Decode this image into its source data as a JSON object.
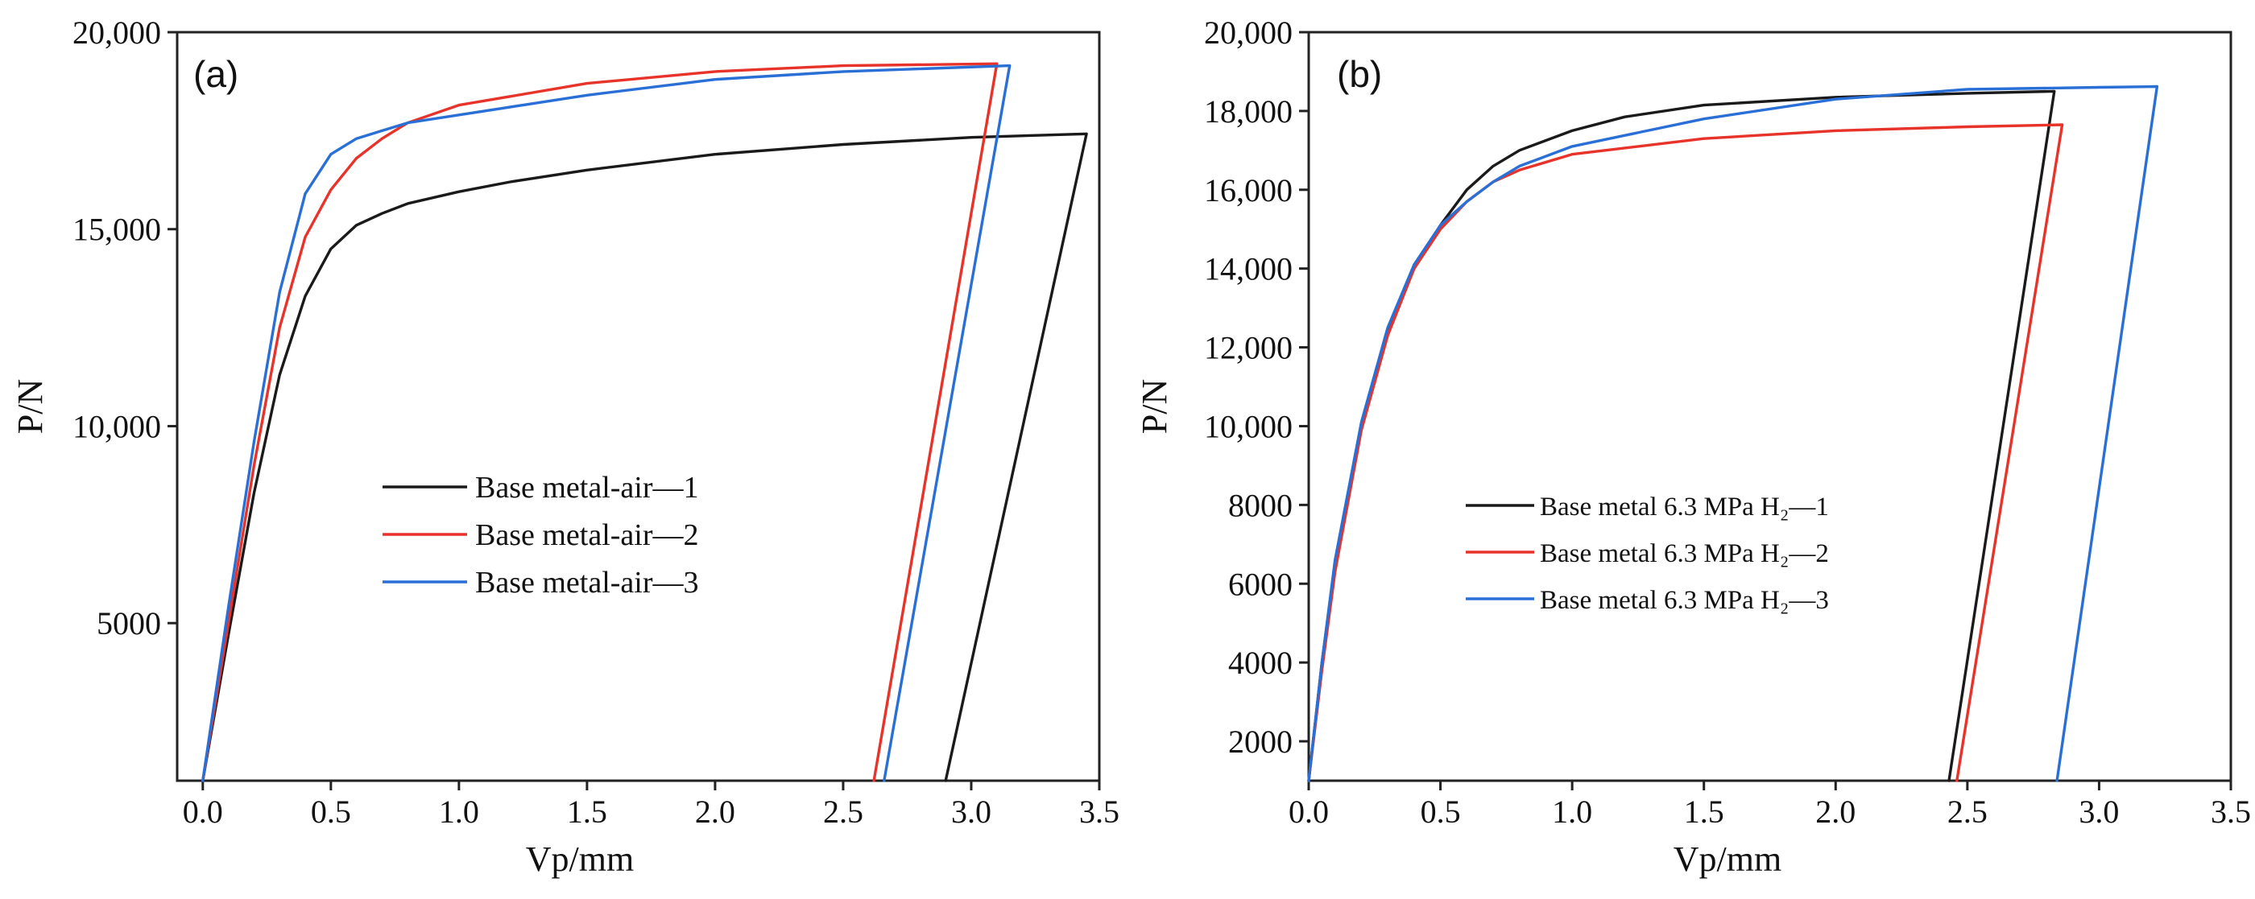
{
  "chart_data": [
    {
      "type": "line",
      "panel_label": "(a)",
      "xlabel": "Vp/mm",
      "ylabel": "P/N",
      "xlim": [
        -0.1,
        3.5
      ],
      "ylim": [
        1000,
        20000
      ],
      "x_ticks": [
        0.0,
        0.5,
        1.0,
        1.5,
        2.0,
        2.5,
        3.0,
        3.5
      ],
      "x_tick_labels": [
        "0.0",
        "0.5",
        "1.0",
        "1.5",
        "2.0",
        "2.5",
        "3.0",
        "3.5"
      ],
      "y_ticks": [
        5000,
        10000,
        15000,
        20000
      ],
      "y_tick_labels": [
        "5000",
        "10,000",
        "15,000",
        "20,000"
      ],
      "legend_position": "center",
      "series": [
        {
          "name": "Base metal-air—1",
          "color": "#1a1a1a",
          "points": [
            [
              0.0,
              1000
            ],
            [
              0.1,
              4700
            ],
            [
              0.2,
              8300
            ],
            [
              0.3,
              11300
            ],
            [
              0.4,
              13300
            ],
            [
              0.5,
              14500
            ],
            [
              0.6,
              15100
            ],
            [
              0.7,
              15400
            ],
            [
              0.8,
              15650
            ],
            [
              1.0,
              15950
            ],
            [
              1.2,
              16200
            ],
            [
              1.5,
              16500
            ],
            [
              2.0,
              16900
            ],
            [
              2.5,
              17150
            ],
            [
              3.0,
              17330
            ],
            [
              3.45,
              17420
            ],
            [
              2.9,
              1000
            ]
          ]
        },
        {
          "name": "Base metal-air—2",
          "color": "#e8332a",
          "points": [
            [
              0.0,
              1000
            ],
            [
              0.1,
              5000
            ],
            [
              0.2,
              9000
            ],
            [
              0.3,
              12500
            ],
            [
              0.4,
              14800
            ],
            [
              0.5,
              16000
            ],
            [
              0.6,
              16800
            ],
            [
              0.7,
              17300
            ],
            [
              0.8,
              17700
            ],
            [
              1.0,
              18150
            ],
            [
              1.5,
              18700
            ],
            [
              2.0,
              19000
            ],
            [
              2.5,
              19150
            ],
            [
              3.1,
              19200
            ],
            [
              2.62,
              1000
            ]
          ]
        },
        {
          "name": "Base metal-air—3",
          "color": "#2a6fd6",
          "points": [
            [
              0.0,
              1000
            ],
            [
              0.1,
              5400
            ],
            [
              0.2,
              9600
            ],
            [
              0.3,
              13400
            ],
            [
              0.4,
              15900
            ],
            [
              0.5,
              16900
            ],
            [
              0.6,
              17300
            ],
            [
              0.7,
              17500
            ],
            [
              0.8,
              17700
            ],
            [
              1.0,
              17900
            ],
            [
              1.5,
              18400
            ],
            [
              2.0,
              18800
            ],
            [
              2.5,
              19000
            ],
            [
              3.15,
              19150
            ],
            [
              2.66,
              1000
            ]
          ]
        }
      ]
    },
    {
      "type": "line",
      "panel_label": "(b)",
      "xlabel": "Vp/mm",
      "ylabel": "P/N",
      "xlim": [
        0.0,
        3.5
      ],
      "ylim": [
        1000,
        20000
      ],
      "x_ticks": [
        0.0,
        0.5,
        1.0,
        1.5,
        2.0,
        2.5,
        3.0,
        3.5
      ],
      "x_tick_labels": [
        "0.0",
        "0.5",
        "1.0",
        "1.5",
        "2.0",
        "2.5",
        "3.0",
        "3.5"
      ],
      "y_ticks": [
        2000,
        4000,
        6000,
        8000,
        10000,
        12000,
        14000,
        16000,
        18000,
        20000
      ],
      "y_tick_labels": [
        "2000",
        "4000",
        "6000",
        "8000",
        "10,000",
        "12,000",
        "14,000",
        "16,000",
        "18,000",
        "20,000"
      ],
      "legend_position": "center",
      "series": [
        {
          "name": "Base metal 6.3 MPa H₂—1",
          "color": "#1a1a1a",
          "points": [
            [
              0.0,
              1000
            ],
            [
              0.05,
              4000
            ],
            [
              0.1,
              6500
            ],
            [
              0.2,
              10000
            ],
            [
              0.3,
              12400
            ],
            [
              0.4,
              14000
            ],
            [
              0.5,
              15100
            ],
            [
              0.6,
              16000
            ],
            [
              0.7,
              16600
            ],
            [
              0.8,
              17000
            ],
            [
              1.0,
              17500
            ],
            [
              1.2,
              17850
            ],
            [
              1.5,
              18150
            ],
            [
              2.0,
              18350
            ],
            [
              2.5,
              18450
            ],
            [
              2.83,
              18500
            ],
            [
              2.43,
              1000
            ]
          ]
        },
        {
          "name": "Base metal 6.3 MPa H₂—2",
          "color": "#e8332a",
          "points": [
            [
              0.0,
              1000
            ],
            [
              0.05,
              3800
            ],
            [
              0.1,
              6300
            ],
            [
              0.2,
              9900
            ],
            [
              0.3,
              12300
            ],
            [
              0.4,
              14000
            ],
            [
              0.5,
              15000
            ],
            [
              0.6,
              15700
            ],
            [
              0.7,
              16200
            ],
            [
              0.8,
              16500
            ],
            [
              1.0,
              16900
            ],
            [
              1.5,
              17300
            ],
            [
              2.0,
              17500
            ],
            [
              2.5,
              17600
            ],
            [
              2.86,
              17650
            ],
            [
              2.46,
              1000
            ]
          ]
        },
        {
          "name": "Base metal 6.3 MPa H₂—3",
          "color": "#2a6fd6",
          "points": [
            [
              0.0,
              1000
            ],
            [
              0.05,
              4000
            ],
            [
              0.1,
              6600
            ],
            [
              0.2,
              10100
            ],
            [
              0.3,
              12500
            ],
            [
              0.4,
              14100
            ],
            [
              0.5,
              15100
            ],
            [
              0.6,
              15700
            ],
            [
              0.7,
              16200
            ],
            [
              0.8,
              16600
            ],
            [
              1.0,
              17100
            ],
            [
              1.5,
              17800
            ],
            [
              2.0,
              18300
            ],
            [
              2.5,
              18550
            ],
            [
              3.0,
              18600
            ],
            [
              3.22,
              18620
            ],
            [
              2.84,
              1000
            ]
          ]
        }
      ]
    }
  ]
}
